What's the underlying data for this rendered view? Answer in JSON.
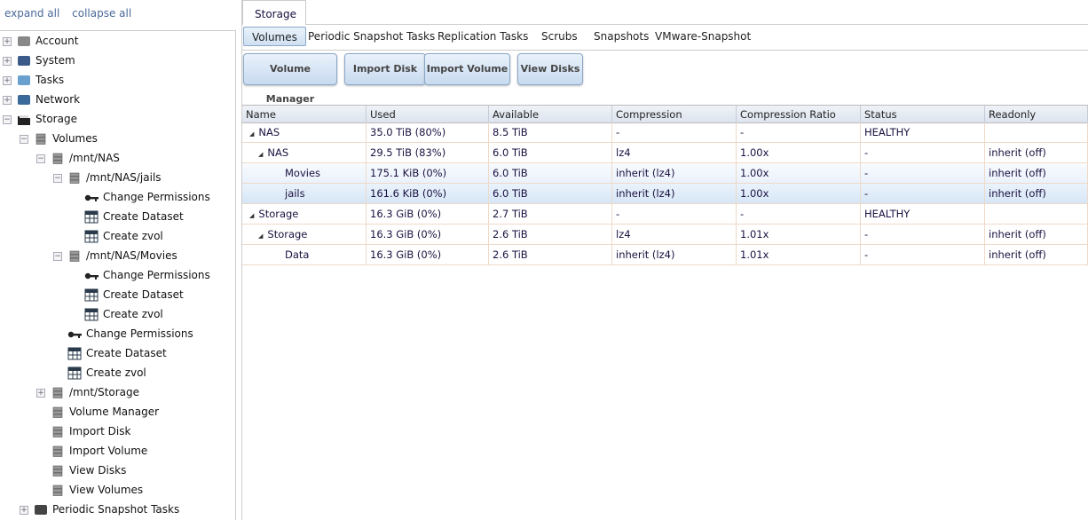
{
  "sidebar": {
    "expand_all": "expand all",
    "collapse_all": "collapse all",
    "items": [
      {
        "label": "Account",
        "level": 0,
        "exp": "+",
        "icon": "users-icon"
      },
      {
        "label": "System",
        "level": 0,
        "exp": "+",
        "icon": "system-icon"
      },
      {
        "label": "Tasks",
        "level": 0,
        "exp": "+",
        "icon": "tasks-icon"
      },
      {
        "label": "Network",
        "level": 0,
        "exp": "+",
        "icon": "network-icon"
      },
      {
        "label": "Storage",
        "level": 0,
        "exp": "-",
        "icon": "folder-icon"
      },
      {
        "label": "Volumes",
        "level": 1,
        "exp": "-",
        "icon": "database-icon"
      },
      {
        "label": "/mnt/NAS",
        "level": 2,
        "exp": "-",
        "icon": "database-icon"
      },
      {
        "label": "/mnt/NAS/jails",
        "level": 3,
        "exp": "-",
        "icon": "database-icon"
      },
      {
        "label": "Change Permissions",
        "level": 4,
        "icon": "key-icon"
      },
      {
        "label": "Create Dataset",
        "level": 4,
        "icon": "table-icon"
      },
      {
        "label": "Create zvol",
        "level": 4,
        "icon": "zvol-icon"
      },
      {
        "label": "/mnt/NAS/Movies",
        "level": 3,
        "exp": "-",
        "icon": "database-icon"
      },
      {
        "label": "Change Permissions",
        "level": 4,
        "icon": "key-icon"
      },
      {
        "label": "Create Dataset",
        "level": 4,
        "icon": "table-icon"
      },
      {
        "label": "Create zvol",
        "level": 4,
        "icon": "zvol-icon"
      },
      {
        "label": "Change Permissions",
        "level": 3,
        "icon": "key-icon"
      },
      {
        "label": "Create Dataset",
        "level": 3,
        "icon": "table-icon"
      },
      {
        "label": "Create zvol",
        "level": 3,
        "icon": "zvol-icon"
      },
      {
        "label": "/mnt/Storage",
        "level": 2,
        "exp": "+",
        "icon": "database-icon"
      },
      {
        "label": "Volume Manager",
        "level": 2,
        "icon": "volume-add-icon"
      },
      {
        "label": "Import Disk",
        "level": 2,
        "icon": "import-icon"
      },
      {
        "label": "Import Volume",
        "level": 2,
        "icon": "import-icon"
      },
      {
        "label": "View Disks",
        "level": 2,
        "icon": "view-icon"
      },
      {
        "label": "View Volumes",
        "level": 2,
        "icon": "view-icon"
      },
      {
        "label": "Periodic Snapshot Tasks",
        "level": 1,
        "exp": "+",
        "icon": "snapshot-icon"
      }
    ]
  },
  "main": {
    "tab": "Storage",
    "subtabs": [
      "Volumes",
      "Periodic Snapshot Tasks",
      "Replication Tasks",
      "Scrubs",
      "Snapshots",
      "VMware-Snapshot"
    ],
    "active_subtab": "Volumes",
    "buttons": [
      "Volume Manager",
      "Import Disk",
      "Import Volume",
      "View Disks"
    ],
    "columns": [
      "Name",
      "Used",
      "Available",
      "Compression",
      "Compression Ratio",
      "Status",
      "Readonly"
    ],
    "rows": [
      {
        "indent": 0,
        "expander": true,
        "cells": [
          "NAS",
          "35.0 TiB (80%)",
          "8.5 TiB",
          "-",
          "-",
          "HEALTHY",
          ""
        ]
      },
      {
        "indent": 1,
        "expander": true,
        "cells": [
          "NAS",
          "29.5 TiB (83%)",
          "6.0 TiB",
          "lz4",
          "1.00x",
          "-",
          "inherit (off)"
        ]
      },
      {
        "indent": 2,
        "expander": false,
        "cells": [
          "Movies",
          "175.1 KiB (0%)",
          "6.0 TiB",
          "inherit (lz4)",
          "1.00x",
          "-",
          "inherit (off)"
        ]
      },
      {
        "indent": 2,
        "expander": false,
        "selected": true,
        "cells": [
          "jails",
          "161.6 KiB (0%)",
          "6.0 TiB",
          "inherit (lz4)",
          "1.00x",
          "-",
          "inherit (off)"
        ]
      },
      {
        "indent": 0,
        "expander": true,
        "cells": [
          "Storage",
          "16.3 GiB (0%)",
          "2.7 TiB",
          "-",
          "-",
          "HEALTHY",
          ""
        ]
      },
      {
        "indent": 1,
        "expander": true,
        "cells": [
          "Storage",
          "16.3 GiB (0%)",
          "2.6 TiB",
          "lz4",
          "1.01x",
          "-",
          "inherit (off)"
        ]
      },
      {
        "indent": 2,
        "expander": false,
        "cells": [
          "Data",
          "16.3 GiB (0%)",
          "2.6 TiB",
          "inherit (lz4)",
          "1.01x",
          "-",
          "inherit (off)"
        ]
      }
    ]
  }
}
